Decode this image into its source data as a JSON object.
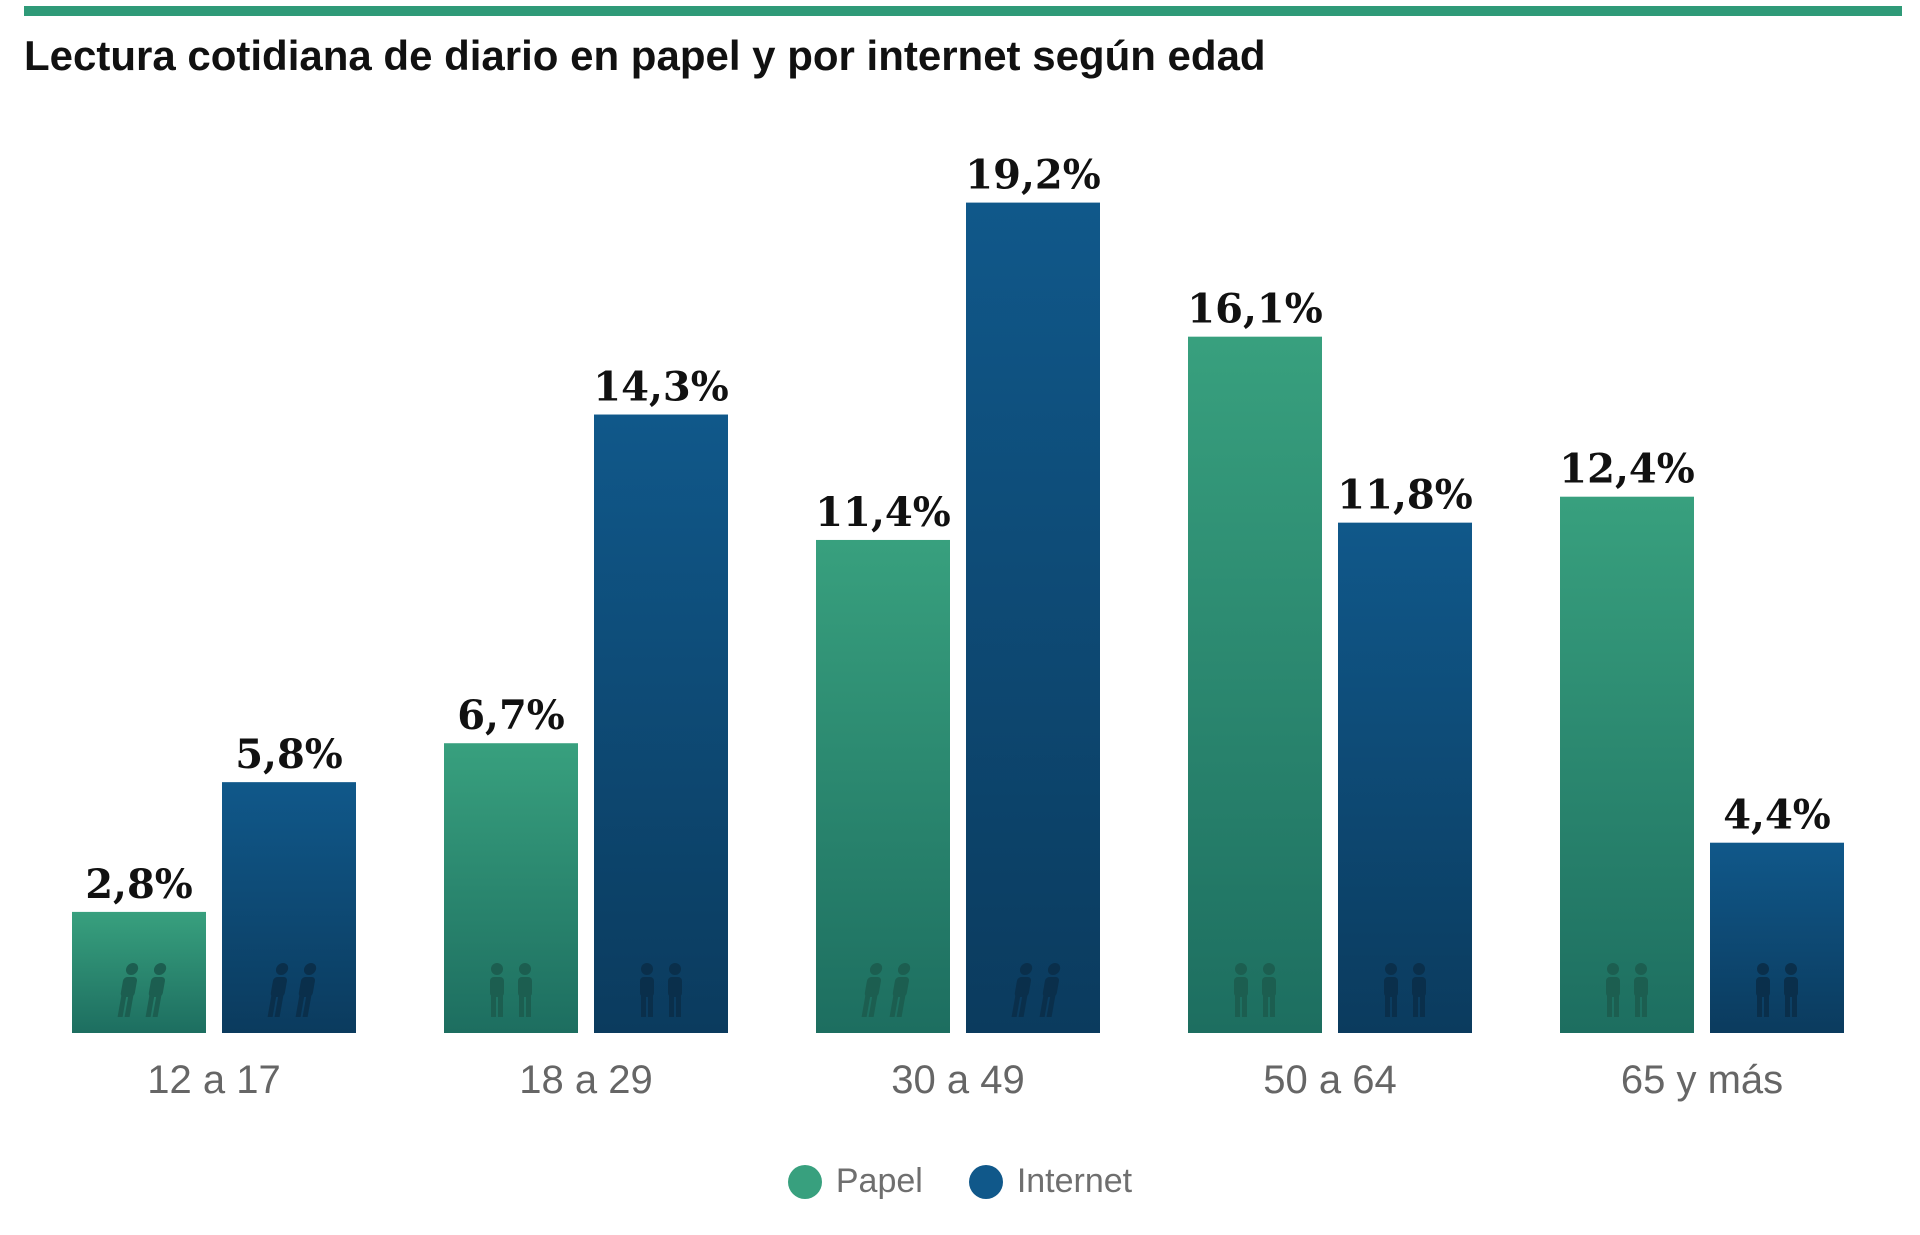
{
  "title": "Lectura cotidiana de diario en papel y por internet según edad",
  "colors": {
    "rule": "#2f9a78",
    "papel_top": "#38a07e",
    "papel_bottom": "#1d6e60",
    "internet_top": "#10588a",
    "internet_bottom": "#0b3b5e"
  },
  "chart_data": {
    "type": "bar",
    "categories": [
      "12 a 17",
      "18 a 29",
      "30 a 49",
      "50 a 64",
      "65 y más"
    ],
    "series": [
      {
        "name": "Papel",
        "values": [
          2.8,
          6.7,
          11.4,
          16.1,
          12.4
        ],
        "labels": [
          "2,8%",
          "6,7%",
          "11,4%",
          "16,1%",
          "12,4%"
        ],
        "color": "#38a07e"
      },
      {
        "name": "Internet",
        "values": [
          5.8,
          14.3,
          19.2,
          11.8,
          4.4
        ],
        "labels": [
          "5,8%",
          "14,3%",
          "19,2%",
          "11,8%",
          "4,4%"
        ],
        "color": "#10588a"
      }
    ],
    "ylim": [
      0,
      20
    ],
    "grid": false,
    "legend": "bottom-center",
    "xlabel": "",
    "ylabel": "",
    "icons": [
      "children-walking-icon",
      "young-couple-icon",
      "adults-walking-icon",
      "adult-couple-icon",
      "senior-couple-icon"
    ]
  },
  "legend": [
    {
      "label": "Papel",
      "color": "#38a07e"
    },
    {
      "label": "Internet",
      "color": "#10588a"
    }
  ]
}
